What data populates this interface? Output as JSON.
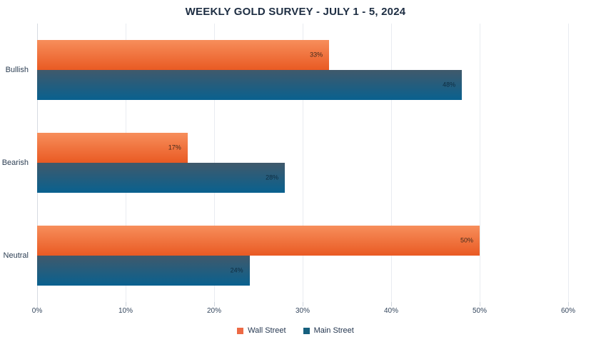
{
  "title": "WEEKLY GOLD SURVEY - JULY 1 - 5, 2024",
  "colors": {
    "title_text": "#1d2d42",
    "axis_text": "#33455c",
    "gridline": "#e9ecf1",
    "axis_line": "#d6dbe2"
  },
  "chart_data": {
    "type": "bar",
    "orientation": "horizontal",
    "title": "WEEKLY GOLD SURVEY - JULY 1 - 5, 2024",
    "categories": [
      "Bullish",
      "Bearish",
      "Neutral"
    ],
    "series": [
      {
        "name": "Wall Street",
        "values": [
          33,
          17,
          50
        ],
        "color": "#ed6a45",
        "gradient_top": "#f78e5b",
        "gradient_bottom": "#e95a23",
        "label_color": "#412a1c"
      },
      {
        "name": "Main Street",
        "values": [
          48,
          28,
          24
        ],
        "color": "#16607e",
        "gradient_top": "#40596b",
        "gradient_bottom": "#09618f",
        "label_color": "#0e2c40"
      }
    ],
    "value_suffix": "%",
    "data_labels": true,
    "xlabel": "",
    "ylabel": "",
    "xlim": [
      0,
      60
    ],
    "x_ticks": [
      "0%",
      "10%",
      "20%",
      "30%",
      "40%",
      "50%",
      "60%"
    ],
    "grid": true,
    "legend_position": "bottom"
  }
}
